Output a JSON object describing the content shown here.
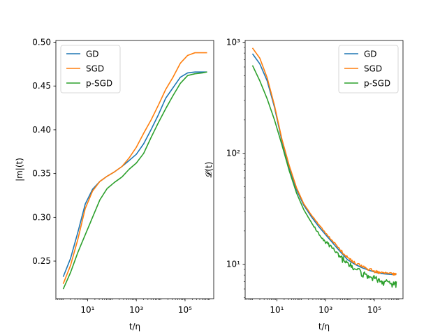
{
  "chart_data": [
    {
      "type": "line",
      "xscale": "log",
      "yscale": "linear",
      "xlabel": "t/η",
      "ylabel": "|m|(t)",
      "xlim": [
        0.5,
        1500000
      ],
      "ylim": [
        0.207,
        0.502
      ],
      "x_ticks": [
        {
          "value": 10,
          "label": "10¹"
        },
        {
          "value": 1000,
          "label": "10³"
        },
        {
          "value": 100000,
          "label": "10⁵"
        }
      ],
      "y_ticks": [
        {
          "value": 0.25,
          "label": "0.25"
        },
        {
          "value": 0.3,
          "label": "0.30"
        },
        {
          "value": 0.35,
          "label": "0.35"
        },
        {
          "value": 0.4,
          "label": "0.40"
        },
        {
          "value": 0.45,
          "label": "0.45"
        },
        {
          "value": 0.5,
          "label": "0.50"
        }
      ],
      "grid": false,
      "legend_position": "top-left",
      "series": [
        {
          "name": "GD",
          "color": "#1f77b4",
          "x": [
            1,
            2,
            4,
            8,
            16,
            32,
            64,
            128,
            256,
            512,
            1000,
            2000,
            4000,
            8000,
            16000,
            32000,
            64000,
            128000,
            256000,
            512000,
            800000
          ],
          "y": [
            0.232,
            0.253,
            0.283,
            0.315,
            0.332,
            0.341,
            0.347,
            0.352,
            0.358,
            0.365,
            0.372,
            0.384,
            0.4,
            0.417,
            0.436,
            0.448,
            0.46,
            0.465,
            0.466,
            0.466,
            0.466
          ]
        },
        {
          "name": "SGD",
          "color": "#ff7f0e",
          "x": [
            1,
            2,
            4,
            8,
            16,
            32,
            64,
            128,
            256,
            512,
            1000,
            2000,
            4000,
            8000,
            16000,
            32000,
            64000,
            128000,
            256000,
            512000,
            800000
          ],
          "y": [
            0.224,
            0.245,
            0.275,
            0.31,
            0.33,
            0.341,
            0.347,
            0.352,
            0.358,
            0.368,
            0.38,
            0.396,
            0.411,
            0.428,
            0.446,
            0.46,
            0.476,
            0.485,
            0.488,
            0.488,
            0.488
          ]
        },
        {
          "name": "p-SGD",
          "color": "#2ca02c",
          "x": [
            1,
            2,
            4,
            8,
            16,
            32,
            64,
            128,
            256,
            512,
            1000,
            2000,
            4000,
            8000,
            16000,
            32000,
            64000,
            128000,
            256000,
            512000,
            800000
          ],
          "y": [
            0.218,
            0.237,
            0.26,
            0.28,
            0.3,
            0.32,
            0.333,
            0.34,
            0.346,
            0.355,
            0.362,
            0.373,
            0.391,
            0.408,
            0.424,
            0.439,
            0.453,
            0.462,
            0.464,
            0.465,
            0.466
          ]
        }
      ]
    },
    {
      "type": "line",
      "xscale": "log",
      "yscale": "log",
      "xlabel": "t/η",
      "ylabel": "𝓛(t)",
      "xlim": [
        0.5,
        1500000
      ],
      "ylim": [
        4.9,
        1040
      ],
      "x_ticks": [
        {
          "value": 10,
          "label": "10¹"
        },
        {
          "value": 1000,
          "label": "10³"
        },
        {
          "value": 100000,
          "label": "10⁵"
        }
      ],
      "y_ticks": [
        {
          "value": 10,
          "label": "10¹"
        },
        {
          "value": 100,
          "label": "10²"
        },
        {
          "value": 1000,
          "label": "10³"
        }
      ],
      "grid": false,
      "legend_position": "top-right",
      "series": [
        {
          "name": "GD",
          "color": "#1f77b4",
          "x": [
            1,
            2,
            4,
            8,
            16,
            32,
            64,
            128,
            256,
            512,
            1000,
            2000,
            4000,
            8000,
            16000,
            32000,
            64000,
            128000,
            256000,
            512000,
            800000
          ],
          "y": [
            790,
            640,
            450,
            260,
            130,
            75,
            47,
            34,
            27,
            22,
            18.5,
            15.5,
            13,
            11,
            10,
            9.3,
            8.8,
            8.4,
            8.2,
            8.1,
            8.1
          ]
        },
        {
          "name": "SGD",
          "color": "#ff7f0e",
          "x": [
            1,
            2,
            4,
            8,
            16,
            32,
            64,
            128,
            256,
            512,
            1000,
            2000,
            4000,
            8000,
            16000,
            32000,
            64000,
            128000,
            256000,
            512000,
            800000
          ],
          "y": [
            890,
            720,
            480,
            270,
            135,
            78,
            49,
            35,
            28,
            23,
            19,
            16,
            13.5,
            11.5,
            10.3,
            9.5,
            9,
            8.5,
            8.3,
            8.2,
            8.2
          ]
        },
        {
          "name": "p-SGD",
          "color": "#2ca02c",
          "x": [
            1,
            2,
            4,
            8,
            16,
            32,
            64,
            128,
            256,
            512,
            1000,
            2000,
            4000,
            8000,
            16000,
            32000,
            64000,
            128000,
            256000,
            512000,
            800000
          ],
          "y": [
            620,
            450,
            310,
            200,
            120,
            70,
            44,
            31,
            24,
            19,
            16,
            13.5,
            11.5,
            10,
            9,
            8.3,
            7.7,
            7.2,
            6.9,
            6.7,
            6.6
          ]
        }
      ]
    }
  ]
}
